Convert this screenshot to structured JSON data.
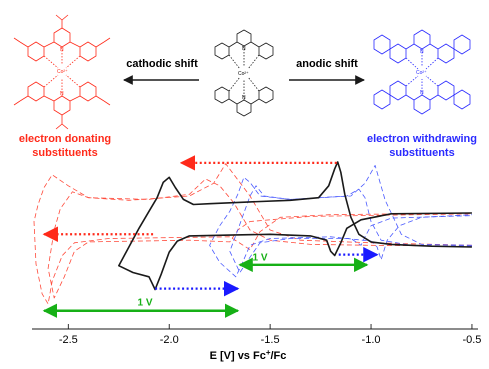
{
  "chart_data": {
    "type": "line",
    "xlabel": "E [V] vs Fc",
    "xlabel_superscript": "+",
    "xlabel_suffix": "/Fc",
    "xlim": [
      -2.68,
      -0.47
    ],
    "xticks": [
      -2.5,
      -2.0,
      -1.5,
      -1.0,
      -0.5
    ],
    "tick_labels": [
      "-2.5",
      "-2.0",
      "-1.5",
      "-1.0",
      "-0.5"
    ],
    "series": [
      {
        "style": "solid",
        "color": "#1a1a1a",
        "points": [
          [
            -0.5,
            0
          ],
          [
            -0.7,
            0.01
          ],
          [
            -0.9,
            0.03
          ],
          [
            -1.0,
            0.06
          ],
          [
            -1.06,
            0.15
          ],
          [
            -1.1,
            0.35
          ],
          [
            -1.13,
            0.62
          ],
          [
            -1.15,
            0.88
          ],
          [
            -1.165,
            1.0
          ],
          [
            -1.18,
            0.92
          ],
          [
            -1.21,
            0.72
          ],
          [
            -1.26,
            0.58
          ],
          [
            -1.4,
            0.55
          ],
          [
            -1.6,
            0.53
          ],
          [
            -1.8,
            0.51
          ],
          [
            -1.88,
            0.5
          ],
          [
            -1.93,
            0.56
          ],
          [
            -1.97,
            0.7
          ],
          [
            -2.0,
            0.82
          ],
          [
            -2.03,
            0.76
          ],
          [
            -2.06,
            0.58
          ],
          [
            -2.1,
            0.42
          ],
          [
            -2.15,
            0.22
          ],
          [
            -2.2,
            0.0
          ],
          [
            -2.25,
            -0.22
          ],
          [
            -2.18,
            -0.3
          ],
          [
            -2.1,
            -0.35
          ],
          [
            -2.07,
            -0.5
          ],
          [
            -2.04,
            -0.32
          ],
          [
            -2.0,
            -0.06
          ],
          [
            -1.96,
            0.07
          ],
          [
            -1.9,
            0.13
          ],
          [
            -1.7,
            0.14
          ],
          [
            -1.5,
            0.15
          ],
          [
            -1.3,
            0.13
          ],
          [
            -1.22,
            0.08
          ],
          [
            -1.2,
            -0.05
          ],
          [
            -1.18,
            -0.1
          ],
          [
            -1.15,
            0.05
          ],
          [
            -1.12,
            0.22
          ],
          [
            -1.05,
            0.32
          ],
          [
            -0.9,
            0.39
          ],
          [
            -0.5,
            0.4
          ]
        ]
      },
      {
        "style": "dashed",
        "color": "#ff4a3a",
        "points": [
          [
            -0.5,
            0.02
          ],
          [
            -1.0,
            0.05
          ],
          [
            -1.35,
            0.08
          ],
          [
            -1.5,
            0.2
          ],
          [
            -1.6,
            0.6
          ],
          [
            -1.72,
            0.98
          ],
          [
            -1.78,
            0.75
          ],
          [
            -1.9,
            0.6
          ],
          [
            -2.2,
            0.55
          ],
          [
            -2.4,
            0.58
          ],
          [
            -2.5,
            0.72
          ],
          [
            -2.58,
            0.85
          ],
          [
            -2.62,
            0.7
          ],
          [
            -2.65,
            0.5
          ],
          [
            -2.67,
            0.3
          ],
          [
            -2.66,
            -0.2
          ],
          [
            -2.63,
            -0.55
          ],
          [
            -2.6,
            -0.67
          ],
          [
            -2.58,
            -0.4
          ],
          [
            -2.53,
            -0.1
          ],
          [
            -2.47,
            0.05
          ],
          [
            -2.3,
            0.1
          ],
          [
            -1.7,
            0.12
          ],
          [
            -1.6,
            -0.03
          ],
          [
            -1.55,
            0.18
          ],
          [
            -1.45,
            0.35
          ],
          [
            -1.2,
            0.38
          ],
          [
            -0.5,
            0.4
          ]
        ]
      },
      {
        "style": "dashed",
        "color": "#ff4a3a",
        "points": [
          [
            -0.5,
            0.01
          ],
          [
            -1.0,
            0.02
          ],
          [
            -1.3,
            0.03
          ],
          [
            -1.5,
            0.08
          ],
          [
            -1.6,
            0.2
          ],
          [
            -1.68,
            0.52
          ],
          [
            -1.75,
            0.72
          ],
          [
            -1.82,
            0.8
          ],
          [
            -1.9,
            0.62
          ],
          [
            -2.1,
            0.56
          ],
          [
            -2.4,
            0.58
          ],
          [
            -2.48,
            0.65
          ],
          [
            -2.54,
            0.45
          ],
          [
            -2.57,
            0.2
          ],
          [
            -2.6,
            -0.25
          ],
          [
            -2.57,
            -0.6
          ],
          [
            -2.52,
            -0.35
          ],
          [
            -2.47,
            -0.05
          ],
          [
            -2.4,
            0.06
          ],
          [
            -1.9,
            0.08
          ],
          [
            -1.7,
            0.06
          ],
          [
            -1.66,
            0.2
          ],
          [
            -1.6,
            0.3
          ],
          [
            -1.3,
            0.36
          ],
          [
            -0.5,
            0.39
          ]
        ]
      },
      {
        "style": "dashed",
        "color": "#4a5aff",
        "points": [
          [
            -0.5,
            0.02
          ],
          [
            -0.75,
            0.03
          ],
          [
            -0.85,
            0.15
          ],
          [
            -0.93,
            0.55
          ],
          [
            -0.98,
            0.96
          ],
          [
            -1.03,
            0.75
          ],
          [
            -1.1,
            0.6
          ],
          [
            -1.4,
            0.56
          ],
          [
            -1.55,
            0.6
          ],
          [
            -1.6,
            0.76
          ],
          [
            -1.63,
            0.82
          ],
          [
            -1.66,
            0.62
          ],
          [
            -1.7,
            0.42
          ],
          [
            -1.75,
            0.25
          ],
          [
            -1.8,
            0.02
          ],
          [
            -1.75,
            -0.18
          ],
          [
            -1.67,
            -0.35
          ],
          [
            -1.64,
            -0.2
          ],
          [
            -1.6,
            0.02
          ],
          [
            -1.5,
            0.1
          ],
          [
            -1.2,
            0.12
          ],
          [
            -1.0,
            0.07
          ],
          [
            -0.97,
            0.0
          ],
          [
            -0.95,
            -0.15
          ],
          [
            -0.92,
            0.08
          ],
          [
            -0.86,
            0.25
          ],
          [
            -0.75,
            0.35
          ],
          [
            -0.5,
            0.38
          ]
        ]
      },
      {
        "style": "dashed",
        "color": "#4a5aff",
        "points": [
          [
            -0.5,
            0.01
          ],
          [
            -0.8,
            0.02
          ],
          [
            -0.95,
            0.08
          ],
          [
            -1.0,
            0.3
          ],
          [
            -1.03,
            0.58
          ],
          [
            -1.06,
            0.68
          ],
          [
            -1.12,
            0.6
          ],
          [
            -1.4,
            0.56
          ],
          [
            -1.53,
            0.6
          ],
          [
            -1.57,
            0.72
          ],
          [
            -1.6,
            0.6
          ],
          [
            -1.63,
            0.4
          ],
          [
            -1.66,
            0.2
          ],
          [
            -1.7,
            -0.05
          ],
          [
            -1.65,
            -0.3
          ],
          [
            -1.6,
            -0.12
          ],
          [
            -1.55,
            0.05
          ],
          [
            -1.4,
            0.1
          ],
          [
            -1.1,
            0.1
          ],
          [
            -1.05,
            0.02
          ],
          [
            -1.03,
            0.12
          ],
          [
            -1.0,
            0.25
          ],
          [
            -0.9,
            0.34
          ],
          [
            -0.5,
            0.37
          ]
        ]
      }
    ],
    "annotations": [
      {
        "kind": "arrow",
        "color": "#ff2a1a",
        "style": "dotted",
        "from": [
          -1.17,
          0.99
        ],
        "to": [
          -1.94,
          0.99
        ]
      },
      {
        "kind": "arrow",
        "color": "#ff2a1a",
        "style": "dotted",
        "from": [
          -2.08,
          0.15
        ],
        "to": [
          -2.62,
          0.15
        ]
      },
      {
        "kind": "arrow",
        "color": "#1a1aff",
        "style": "dotted",
        "from": [
          -1.16,
          -0.09
        ],
        "to": [
          -0.97,
          -0.09
        ]
      },
      {
        "kind": "arrow",
        "color": "#1a1aff",
        "style": "dotted",
        "from": [
          -2.07,
          -0.49
        ],
        "to": [
          -1.66,
          -0.49
        ]
      },
      {
        "kind": "double-arrow",
        "color": "#16b016",
        "from": [
          -1.65,
          -0.21
        ],
        "to": [
          -1.02,
          -0.21
        ],
        "label": "1 V",
        "label_at": [
          -1.55,
          -0.16
        ]
      },
      {
        "kind": "double-arrow",
        "color": "#16b016",
        "from": [
          -2.62,
          -0.75
        ],
        "to": [
          -1.66,
          -0.75
        ],
        "label": "1 V",
        "label_at": [
          -2.12,
          -0.69
        ]
      }
    ]
  },
  "header": {
    "cathodic_label": "cathodic shift",
    "anodic_label": "anodic shift",
    "donating_line1": "electron donating",
    "donating_line2": "substituents",
    "withdrawing_line1": "electron withdrawing",
    "withdrawing_line2": "substituents",
    "center_ion": "Co²⁺",
    "left_ion": "Co²⁺",
    "right_ion": "Co²⁺",
    "n_atom": "N"
  },
  "colors": {
    "donating": "#ff2a1a",
    "withdrawing": "#2a2aff",
    "green": "#16b016",
    "ink": "#1a1a1a"
  }
}
